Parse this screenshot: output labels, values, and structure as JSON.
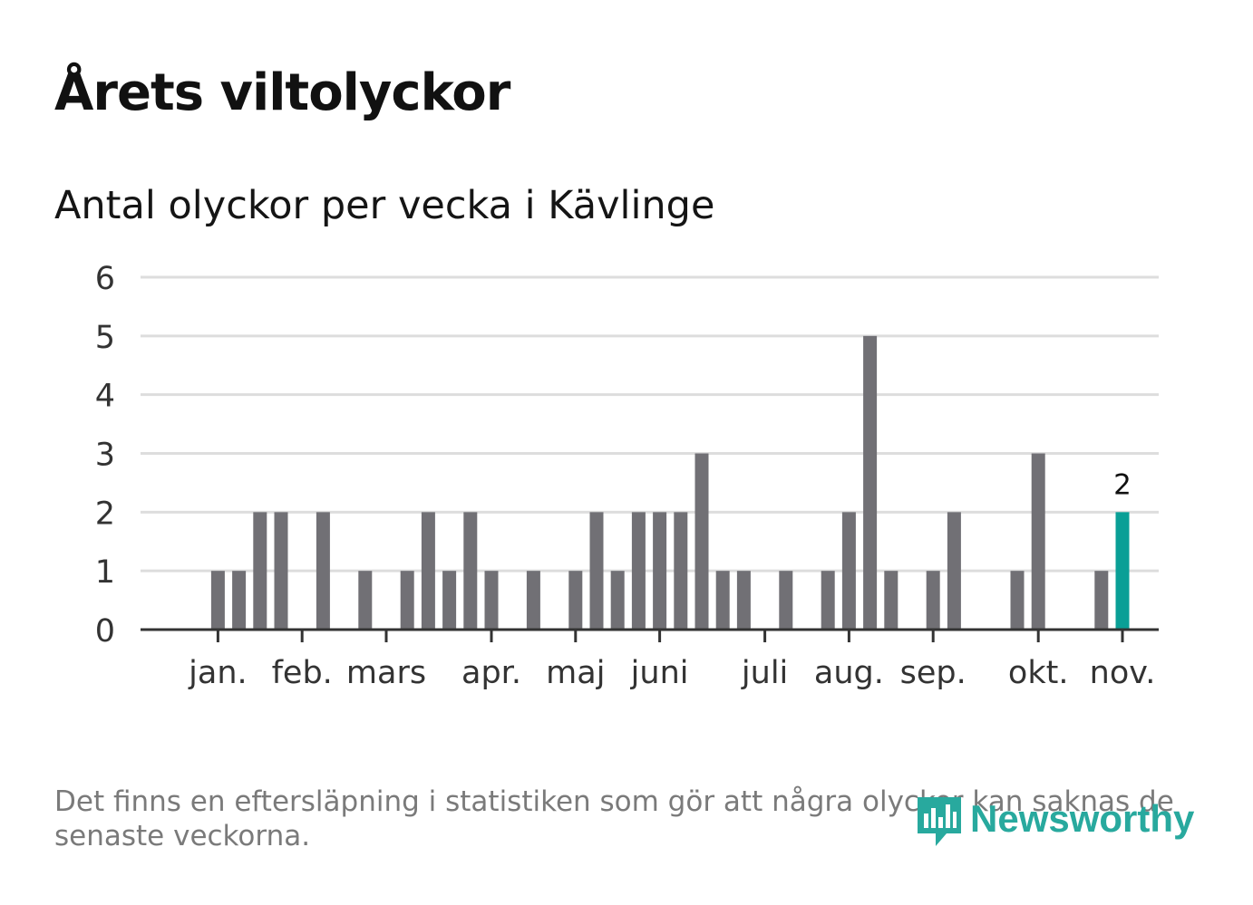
{
  "header": {
    "title": "Årets viltolyckor",
    "subtitle": "Antal olyckor per vecka i Kävlinge"
  },
  "colors": {
    "bar": "#717075",
    "highlight": "#0a9f96",
    "grid": "#dddddd",
    "axis": "#333333",
    "logo": "#28a99e"
  },
  "chart_data": {
    "type": "bar",
    "title": "Antal olyckor per vecka i Kävlinge",
    "xlabel": "",
    "ylabel": "",
    "ylim": [
      0,
      6
    ],
    "y_ticks": [
      "0",
      "1",
      "2",
      "3",
      "4",
      "5",
      "6"
    ],
    "grid": true,
    "weeks": [
      1,
      2,
      3,
      4,
      5,
      6,
      7,
      8,
      9,
      10,
      11,
      12,
      13,
      14,
      15,
      16,
      17,
      18,
      19,
      20,
      21,
      22,
      23,
      24,
      25,
      26,
      27,
      28,
      29,
      30,
      31,
      32,
      33,
      34,
      35,
      36,
      37,
      38,
      39,
      40,
      41,
      42,
      43,
      44,
      45,
      46,
      47
    ],
    "values": [
      0,
      0,
      1,
      1,
      2,
      2,
      0,
      2,
      0,
      1,
      0,
      1,
      2,
      1,
      2,
      1,
      0,
      1,
      0,
      1,
      2,
      1,
      2,
      2,
      2,
      3,
      1,
      1,
      0,
      1,
      0,
      1,
      2,
      5,
      1,
      0,
      1,
      2,
      0,
      0,
      1,
      3,
      0,
      0,
      1,
      2,
      0
    ],
    "highlight_index": 45,
    "highlight_label": "2",
    "month_labels": [
      {
        "label": "jan.",
        "week": 3
      },
      {
        "label": "feb.",
        "week": 7
      },
      {
        "label": "mars",
        "week": 11
      },
      {
        "label": "apr.",
        "week": 16
      },
      {
        "label": "maj",
        "week": 20
      },
      {
        "label": "juni",
        "week": 24
      },
      {
        "label": "juli",
        "week": 29
      },
      {
        "label": "aug.",
        "week": 33
      },
      {
        "label": "sep.",
        "week": 37
      },
      {
        "label": "okt.",
        "week": 42
      },
      {
        "label": "nov.",
        "week": 46
      }
    ]
  },
  "footer": {
    "note": "Det finns en eftersläpning i statistiken som gör att några olyckor kan saknas de senaste veckorna.",
    "brand": "Newsworthy"
  }
}
